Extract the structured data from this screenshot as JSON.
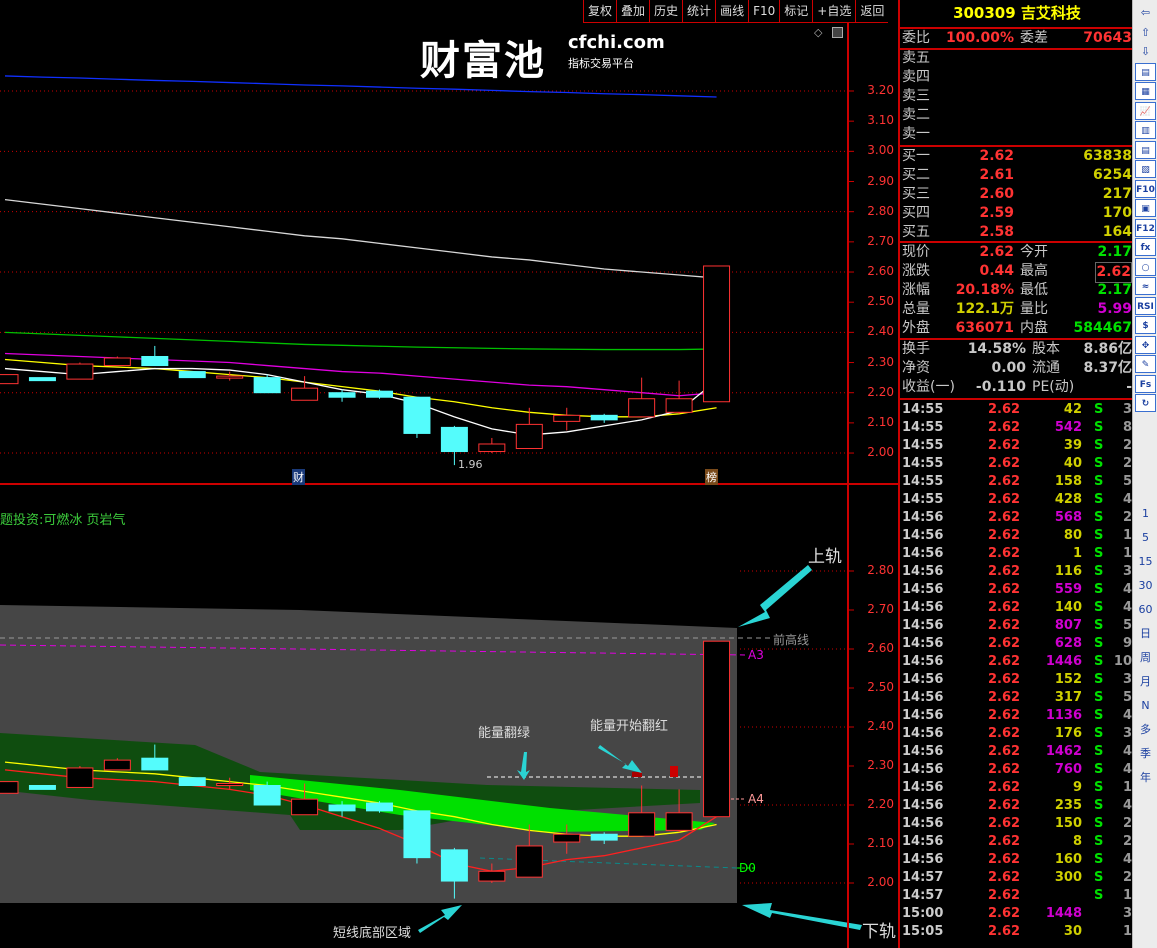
{
  "toolbar": {
    "items": [
      "复权",
      "叠加",
      "历史",
      "统计",
      "画线",
      "F10",
      "标记",
      "+自选",
      "返回"
    ]
  },
  "stock": {
    "code": "300309",
    "name": "吉艾科技"
  },
  "quote": {
    "weibi_label": "委比",
    "weibi": "100.00%",
    "weicha_label": "委差",
    "weicha": "70643",
    "asks": [
      {
        "label": "卖五"
      },
      {
        "label": "卖四"
      },
      {
        "label": "卖三"
      },
      {
        "label": "卖二"
      },
      {
        "label": "卖一"
      }
    ],
    "bids": [
      {
        "label": "买一",
        "price": "2.62",
        "vol": "63838"
      },
      {
        "label": "买二",
        "price": "2.61",
        "vol": "6254"
      },
      {
        "label": "买三",
        "price": "2.60",
        "vol": "217"
      },
      {
        "label": "买四",
        "price": "2.59",
        "vol": "170"
      },
      {
        "label": "买五",
        "price": "2.58",
        "vol": "164"
      }
    ],
    "stats": [
      {
        "l1": "现价",
        "v1": "2.62",
        "c1": "#ff3333",
        "l2": "今开",
        "v2": "2.17",
        "c2": "#00e000"
      },
      {
        "l1": "涨跌",
        "v1": "0.44",
        "c1": "#ff3333",
        "l2": "最高",
        "v2": "2.62",
        "c2": "#ff3333"
      },
      {
        "l1": "涨幅",
        "v1": "20.18%",
        "c1": "#ff3333",
        "l2": "最低",
        "v2": "2.17",
        "c2": "#00e000"
      },
      {
        "l1": "总量",
        "v1": "122.1万",
        "c1": "#d0d000",
        "l2": "量比",
        "v2": "5.99",
        "c2": "#d000d0"
      },
      {
        "l1": "外盘",
        "v1": "636071",
        "c1": "#ff3333",
        "l2": "内盘",
        "v2": "584467",
        "c2": "#00e000"
      }
    ],
    "fund": [
      {
        "l1": "换手",
        "v1": "14.58%",
        "l2": "股本",
        "v2": "8.86亿"
      },
      {
        "l1": "净资",
        "v1": "0.00",
        "l2": "流通",
        "v2": "8.37亿"
      },
      {
        "l1": "收益(一)",
        "v1": "-0.110",
        "l2": "PE(动)",
        "v2": "-"
      }
    ]
  },
  "trades": [
    [
      "14:55",
      "2.62",
      "42",
      "S",
      "3"
    ],
    [
      "14:55",
      "2.62",
      "542",
      "S",
      "8"
    ],
    [
      "14:55",
      "2.62",
      "39",
      "S",
      "2"
    ],
    [
      "14:55",
      "2.62",
      "40",
      "S",
      "2"
    ],
    [
      "14:55",
      "2.62",
      "158",
      "S",
      "5"
    ],
    [
      "14:55",
      "2.62",
      "428",
      "S",
      "4"
    ],
    [
      "14:56",
      "2.62",
      "568",
      "S",
      "2"
    ],
    [
      "14:56",
      "2.62",
      "80",
      "S",
      "1"
    ],
    [
      "14:56",
      "2.62",
      "1",
      "S",
      "1"
    ],
    [
      "14:56",
      "2.62",
      "116",
      "S",
      "3"
    ],
    [
      "14:56",
      "2.62",
      "559",
      "S",
      "4"
    ],
    [
      "14:56",
      "2.62",
      "140",
      "S",
      "4"
    ],
    [
      "14:56",
      "2.62",
      "807",
      "S",
      "5"
    ],
    [
      "14:56",
      "2.62",
      "628",
      "S",
      "9"
    ],
    [
      "14:56",
      "2.62",
      "1446",
      "S",
      "10"
    ],
    [
      "14:56",
      "2.62",
      "152",
      "S",
      "3"
    ],
    [
      "14:56",
      "2.62",
      "317",
      "S",
      "5"
    ],
    [
      "14:56",
      "2.62",
      "1136",
      "S",
      "4"
    ],
    [
      "14:56",
      "2.62",
      "176",
      "S",
      "3"
    ],
    [
      "14:56",
      "2.62",
      "1462",
      "S",
      "4"
    ],
    [
      "14:56",
      "2.62",
      "760",
      "S",
      "4"
    ],
    [
      "14:56",
      "2.62",
      "9",
      "S",
      "1"
    ],
    [
      "14:56",
      "2.62",
      "235",
      "S",
      "4"
    ],
    [
      "14:56",
      "2.62",
      "150",
      "S",
      "2"
    ],
    [
      "14:56",
      "2.62",
      "8",
      "S",
      "2"
    ],
    [
      "14:56",
      "2.62",
      "160",
      "S",
      "4"
    ],
    [
      "14:57",
      "2.62",
      "300",
      "S",
      "2"
    ],
    [
      "14:57",
      "2.62",
      "",
      "S",
      "1"
    ],
    [
      "15:00",
      "2.62",
      "1448",
      "",
      "3"
    ],
    [
      "15:05",
      "2.62",
      "30",
      "",
      "1"
    ]
  ],
  "colors": {
    "up": "#ff3333",
    "down": "#54fcfc",
    "big_vol": "#d000d0",
    "vol": "#d0d000",
    "sell": "#00e000"
  },
  "sidebar": {
    "items": [
      "⇦",
      "⇧",
      "⇩",
      "▤",
      "▦",
      "📈",
      "▥",
      "▤",
      "▧",
      "F10",
      "▣",
      "F12",
      "fx",
      "○",
      "≈",
      "RSI",
      "$",
      "✥",
      "✎",
      "Fs",
      "↻",
      "1",
      "5",
      "15",
      "30",
      "60",
      "日",
      "周",
      "月",
      "N",
      "多",
      "季",
      "年"
    ]
  },
  "upper": {
    "axis": [
      "3.20",
      "3.10",
      "3.00",
      "2.90",
      "2.80",
      "2.70",
      "2.60",
      "2.50",
      "2.40",
      "2.30",
      "2.20",
      "2.10",
      "2.00"
    ],
    "low_label": "1.96",
    "marker_cai": "财",
    "marker_bang": "榜"
  },
  "lower": {
    "axis": [
      "2.80",
      "2.70",
      "2.60",
      "2.50",
      "2.40",
      "2.30",
      "2.20",
      "2.10",
      "2.00"
    ],
    "theme_text": "题投资:可燃冰 页岩气",
    "labels": {
      "prev_high": "前高线",
      "a3": "A3",
      "a4": "A4",
      "d0": "D0",
      "upper_rail": "上轨",
      "lower_rail": "下轨",
      "energy_green": "能量翻绿",
      "energy_red": "能量开始翻红",
      "bottom_zone": "短线底部区域"
    }
  },
  "watermark": {
    "logo": "财富池",
    "site": "cfchi.com",
    "slogan": "指标交易平台"
  },
  "chart_data": {
    "type": "candlestick",
    "ylim_upper": [
      2.0,
      3.2
    ],
    "ylim_lower": [
      2.0,
      2.8
    ],
    "ohlc": [
      [
        2.23,
        2.26,
        2.23,
        2.26
      ],
      [
        2.25,
        2.25,
        2.24,
        2.24
      ],
      [
        2.245,
        2.3,
        2.245,
        2.295
      ],
      [
        2.29,
        2.32,
        2.29,
        2.315
      ],
      [
        2.32,
        2.355,
        2.29,
        2.29
      ],
      [
        2.27,
        2.27,
        2.25,
        2.25
      ],
      [
        2.255,
        2.27,
        2.24,
        2.255
      ],
      [
        2.25,
        2.26,
        2.2,
        2.2
      ],
      [
        2.175,
        2.255,
        2.175,
        2.215
      ],
      [
        2.2,
        2.21,
        2.17,
        2.185
      ],
      [
        2.205,
        2.21,
        2.18,
        2.185
      ],
      [
        2.185,
        2.185,
        2.05,
        2.065
      ],
      [
        2.085,
        2.09,
        1.96,
        2.005
      ],
      [
        2.005,
        2.05,
        2.0,
        2.03
      ],
      [
        2.015,
        2.15,
        2.015,
        2.095
      ],
      [
        2.105,
        2.15,
        2.075,
        2.125
      ],
      [
        2.125,
        2.13,
        2.1,
        2.11
      ],
      [
        2.12,
        2.25,
        2.12,
        2.18
      ],
      [
        2.135,
        2.24,
        2.13,
        2.18
      ],
      [
        2.17,
        2.62,
        2.17,
        2.62
      ]
    ],
    "lines": [
      {
        "color": "#1030ff",
        "values": [
          3.25,
          3.246,
          3.243,
          3.239,
          3.235,
          3.232,
          3.228,
          3.224,
          3.22,
          3.217,
          3.213,
          3.209,
          3.206,
          3.202,
          3.198,
          3.195,
          3.191,
          3.188,
          3.184,
          3.18
        ]
      },
      {
        "color": "#d8d8d8",
        "values": [
          2.84,
          2.825,
          2.81,
          2.795,
          2.78,
          2.765,
          2.75,
          2.735,
          2.72,
          2.71,
          2.695,
          2.68,
          2.665,
          2.65,
          2.64,
          2.625,
          2.61,
          2.6,
          2.59,
          2.58
        ]
      },
      {
        "color": "#00c000",
        "values": [
          2.4,
          2.395,
          2.39,
          2.385,
          2.38,
          2.375,
          2.37,
          2.365,
          2.36,
          2.357,
          2.354,
          2.351,
          2.349,
          2.347,
          2.345,
          2.344,
          2.343,
          2.343,
          2.343,
          2.345
        ]
      },
      {
        "color": "#e000e0",
        "values": [
          2.33,
          2.325,
          2.32,
          2.315,
          2.31,
          2.305,
          2.3,
          2.29,
          2.28,
          2.27,
          2.265,
          2.255,
          2.245,
          2.235,
          2.225,
          2.22,
          2.21,
          2.2,
          2.19,
          2.2
        ]
      },
      {
        "color": "#ffff00",
        "values": [
          2.31,
          2.3,
          2.29,
          2.285,
          2.28,
          2.27,
          2.26,
          2.25,
          2.235,
          2.22,
          2.205,
          2.185,
          2.17,
          2.15,
          2.135,
          2.125,
          2.12,
          2.12,
          2.13,
          2.15
        ]
      },
      {
        "color": "#ffffff",
        "values": [
          2.28,
          2.27,
          2.26,
          2.27,
          2.28,
          2.28,
          2.275,
          2.26,
          2.235,
          2.21,
          2.195,
          2.165,
          2.12,
          2.08,
          2.06,
          2.07,
          2.09,
          2.11,
          2.14,
          2.24
        ]
      }
    ],
    "lower_lines": [
      {
        "color": "#ffff00",
        "values": [
          2.31,
          2.3,
          2.29,
          2.285,
          2.28,
          2.27,
          2.26,
          2.25,
          2.235,
          2.22,
          2.205,
          2.185,
          2.17,
          2.15,
          2.135,
          2.125,
          2.12,
          2.12,
          2.13,
          2.15
        ]
      },
      {
        "color": "#ff2020",
        "values": [
          2.29,
          2.28,
          2.27,
          2.265,
          2.26,
          2.25,
          2.24,
          2.225,
          2.2,
          2.17,
          2.14,
          2.1,
          2.05,
          2.03,
          2.04,
          2.06,
          2.07,
          2.09,
          2.11,
          2.17
        ]
      }
    ]
  }
}
